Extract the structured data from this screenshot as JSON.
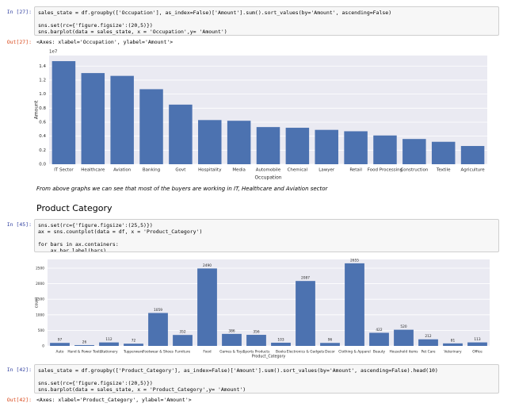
{
  "cells": [
    {
      "prompt": "In [27]:",
      "code": [
        [
          "sales_state = df.groupby(['Occupation'], as_index=False)['Amount'].sum().sort_values(by='Amount', ascending=False)"
        ],
        [
          "sns.set(rc={'figure.figsize':(20,5)})",
          "sns.barplot(data = sales_state, x = 'Occupation',y= 'Amount')"
        ]
      ]
    },
    {
      "prompt": "Out[27]:",
      "text": "<Axes: xlabel='Occupation', ylabel='Amount'>"
    },
    {
      "text": "From above graphs we can see that most of the buyers are working in IT, Healthcare and Aviation sector"
    },
    {
      "heading": "Product Category"
    },
    {
      "prompt": "In [45]:",
      "code": [
        [
          "sns.set(rc={'figure.figsize':(25,5)})",
          "ax = sns.countplot(data = df, x = 'Product_Category')"
        ],
        [
          "for bars in ax.containers:",
          "    ax.bar_label(bars)"
        ]
      ]
    },
    {
      "prompt": "In [42]:",
      "code": [
        [
          "sales_state = df.groupby(['Product_Category'], as_index=False)['Amount'].sum().sort_values(by='Amount', ascending=False).head(10)"
        ],
        [
          "sns.set(rc={'figure.figsize':(20,5)})",
          "sns.barplot(data = sales_state, x = 'Product_Category',y= 'Amount')"
        ]
      ]
    },
    {
      "prompt": "Out[42]:",
      "text": "<Axes: xlabel='Product_Category', ylabel='Amount'>"
    }
  ],
  "chart_data": [
    {
      "type": "bar",
      "xlabel": "Occupation",
      "ylabel": "Amount",
      "offset_label": "1e7",
      "categories": [
        "IT Sector",
        "Healthcare",
        "Aviation",
        "Banking",
        "Govt",
        "Hospitality",
        "Media",
        "Automobile",
        "Chemical",
        "Lawyer",
        "Retail",
        "Food Processing",
        "Construction",
        "Textile",
        "Agriculture"
      ],
      "values": [
        1.47,
        1.3,
        1.26,
        1.07,
        0.85,
        0.63,
        0.62,
        0.53,
        0.52,
        0.49,
        0.47,
        0.41,
        0.36,
        0.32,
        0.26
      ],
      "color": "#4c72b0",
      "background": "#eaeaf2",
      "grid": true,
      "ylim": [
        0,
        1.55
      ],
      "yticks": [
        {
          "value": 0,
          "label": "0.0"
        },
        0.2,
        0.4,
        0.6,
        0.8,
        {
          "value": 1,
          "label": "1.0"
        },
        1.2,
        1.4
      ]
    },
    {
      "type": "bar",
      "xlabel": "Product_Category",
      "ylabel": "count",
      "categories": [
        "Auto",
        "Hand & Power Tools",
        "Stationery",
        "Tupperware",
        "Footwear & Shoes",
        "Furniture",
        "Food",
        "Games & Toys",
        "Sports Products",
        "Books",
        "Electronics & Gadgets",
        "Decor",
        "Clothing & Apparel",
        "Beauty",
        "Household items",
        "Pet Care",
        "Veterinary",
        "Office"
      ],
      "values": [
        97,
        26,
        112,
        72,
        1059,
        352,
        2490,
        386,
        356,
        103,
        2087,
        96,
        2655,
        422,
        520,
        212,
        81,
        113
      ],
      "color": "#4c72b0",
      "background": "#eaeaf2",
      "grid": true,
      "bar_labels": true,
      "ylim": [
        0,
        2780
      ],
      "yticks": [
        0,
        500,
        1000,
        1500,
        2000,
        2500
      ]
    }
  ]
}
